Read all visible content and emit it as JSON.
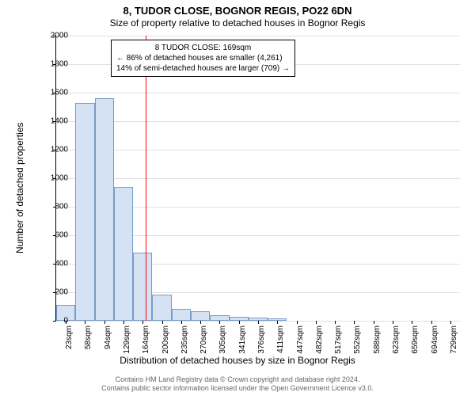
{
  "chart": {
    "type": "histogram",
    "title_main": "8, TUDOR CLOSE, BOGNOR REGIS, PO22 6DN",
    "title_sub": "Size of property relative to detached houses in Bognor Regis",
    "x_label": "Distribution of detached houses by size in Bognor Regis",
    "y_label": "Number of detached properties",
    "background_color": "#ffffff",
    "grid_color": "#e0e0e0",
    "bar_fill": "#d5e2f4",
    "bar_stroke": "#7a9cc6",
    "reference_line_color": "#ff0000",
    "reference_x_value": 169,
    "ylim": [
      0,
      2000
    ],
    "ytick_step": 200,
    "y_ticks": [
      0,
      200,
      400,
      600,
      800,
      1000,
      1200,
      1400,
      1600,
      1800,
      2000
    ],
    "x_tick_labels": [
      "23sqm",
      "58sqm",
      "94sqm",
      "129sqm",
      "164sqm",
      "200sqm",
      "235sqm",
      "270sqm",
      "305sqm",
      "341sqm",
      "376sqm",
      "411sqm",
      "447sqm",
      "482sqm",
      "517sqm",
      "552sqm",
      "588sqm",
      "623sqm",
      "659sqm",
      "694sqm",
      "729sqm"
    ],
    "values": [
      110,
      1530,
      1560,
      940,
      480,
      185,
      85,
      65,
      40,
      30,
      25,
      18,
      0,
      0,
      0,
      0,
      0,
      0,
      0,
      0,
      0
    ],
    "annotation": {
      "line1": "8 TUDOR CLOSE: 169sqm",
      "line2": "← 86% of detached houses are smaller (4,261)",
      "line3": "14% of semi-detached houses are larger (709) →"
    },
    "title_fontsize": 13,
    "subtitle_fontsize": 12,
    "axis_label_fontsize": 12,
    "tick_fontsize": 10,
    "annotation_fontsize": 10,
    "footer_fontsize": 9
  },
  "footer": {
    "line1": "Contains HM Land Registry data © Crown copyright and database right 2024.",
    "line2": "Contains public sector information licensed under the Open Government Licence v3.0."
  }
}
